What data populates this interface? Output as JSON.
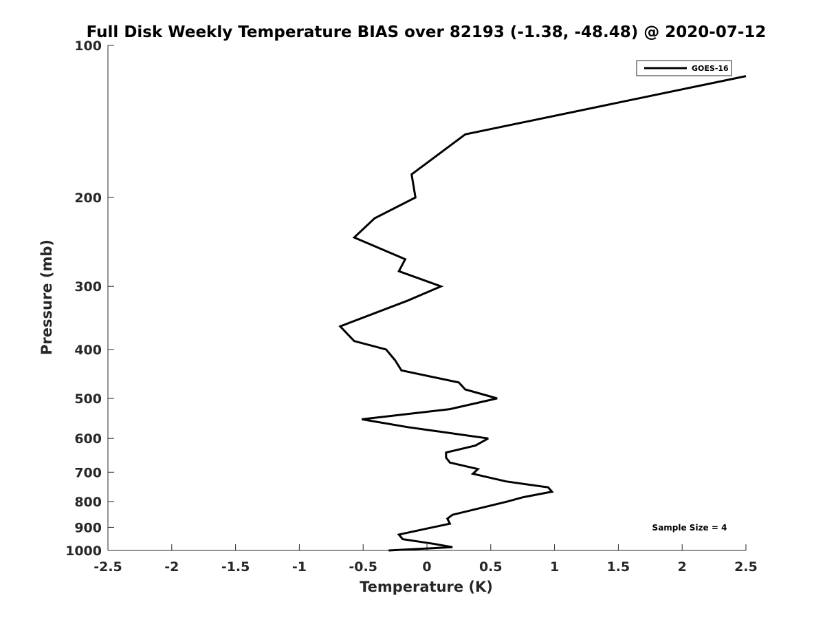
{
  "chart_data": {
    "type": "line",
    "title": "Full Disk Weekly Temperature BIAS over 82193 (-1.38, -48.48) @ 2020-07-12",
    "xlabel": "Temperature (K)",
    "ylabel": "Pressure (mb)",
    "xlim": [
      -2.5,
      2.5
    ],
    "ylim": [
      100,
      1000
    ],
    "y_scale": "log",
    "y_reversed": true,
    "grid": false,
    "legend_position": "top-right",
    "xticks": [
      -2.5,
      -2,
      -1.5,
      -1,
      -0.5,
      0,
      0.5,
      1,
      1.5,
      2,
      2.5
    ],
    "xtick_labels": [
      "-2.5",
      "-2",
      "-1.5",
      "-1",
      "-0.5",
      "0",
      "0.5",
      "1",
      "1.5",
      "2",
      "2.5"
    ],
    "yticks": [
      100,
      200,
      300,
      400,
      500,
      600,
      700,
      800,
      900,
      1000
    ],
    "ytick_labels": [
      "100",
      "200",
      "300",
      "400",
      "500",
      "600",
      "700",
      "800",
      "900",
      "1000"
    ],
    "series": [
      {
        "name": "GOES-16",
        "color": "#000000",
        "points": [
          [
            2.5,
            115
          ],
          [
            0.3,
            150
          ],
          [
            -0.12,
            180
          ],
          [
            -0.09,
            200
          ],
          [
            -0.41,
            220
          ],
          [
            -0.57,
            240
          ],
          [
            -0.17,
            265
          ],
          [
            -0.22,
            280
          ],
          [
            0.11,
            300
          ],
          [
            -0.15,
            320
          ],
          [
            -0.68,
            360
          ],
          [
            -0.57,
            385
          ],
          [
            -0.32,
            400
          ],
          [
            -0.25,
            420
          ],
          [
            -0.2,
            440
          ],
          [
            0.25,
            465
          ],
          [
            0.3,
            480
          ],
          [
            0.55,
            500
          ],
          [
            0.18,
            525
          ],
          [
            -0.51,
            550
          ],
          [
            -0.15,
            570
          ],
          [
            0.48,
            600
          ],
          [
            0.38,
            620
          ],
          [
            0.15,
            640
          ],
          [
            0.15,
            655
          ],
          [
            0.18,
            670
          ],
          [
            0.4,
            690
          ],
          [
            0.36,
            705
          ],
          [
            0.62,
            730
          ],
          [
            0.95,
            750
          ],
          [
            0.98,
            765
          ],
          [
            0.75,
            785
          ],
          [
            0.63,
            800
          ],
          [
            0.2,
            850
          ],
          [
            0.16,
            865
          ],
          [
            0.18,
            885
          ],
          [
            0.0,
            905
          ],
          [
            -0.22,
            930
          ],
          [
            -0.19,
            950
          ],
          [
            0.05,
            970
          ],
          [
            0.2,
            985
          ],
          [
            -0.3,
            1000
          ]
        ]
      }
    ],
    "annotation": "Sample Size = 4"
  }
}
